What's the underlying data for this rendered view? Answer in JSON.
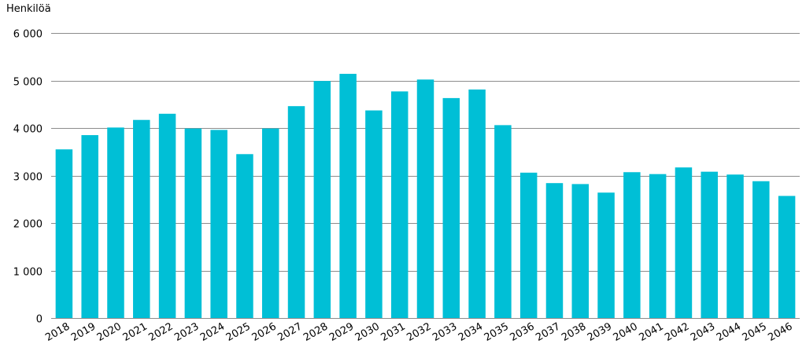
{
  "chart_data": {
    "type": "bar",
    "ylabel": "Henkilöä",
    "ylim": [
      0,
      6000
    ],
    "yticks": [
      0,
      1000,
      2000,
      3000,
      4000,
      5000,
      6000
    ],
    "ytick_labels": [
      "0",
      "1 000",
      "2 000",
      "3 000",
      "4 000",
      "5 000",
      "6 000"
    ],
    "grid": true,
    "legend": "none",
    "bar_color": "#00BFD6",
    "grid_color": "#8C8C8C",
    "categories": [
      "2018",
      "2019",
      "2020",
      "2021",
      "2022",
      "2023",
      "2024",
      "2025",
      "2026",
      "2027",
      "2028",
      "2029",
      "2030",
      "2031",
      "2032",
      "2033",
      "2034",
      "2035",
      "2036",
      "2037",
      "2038",
      "2039",
      "2040",
      "2041",
      "2042",
      "2043",
      "2044",
      "2045",
      "2046"
    ],
    "values": [
      3550,
      3850,
      4010,
      4170,
      4300,
      3990,
      3960,
      3450,
      3990,
      4460,
      4990,
      5140,
      4370,
      4770,
      5020,
      4630,
      4810,
      4060,
      3060,
      2840,
      2820,
      2640,
      3070,
      3030,
      3170,
      3080,
      3020,
      2880,
      2570
    ]
  }
}
